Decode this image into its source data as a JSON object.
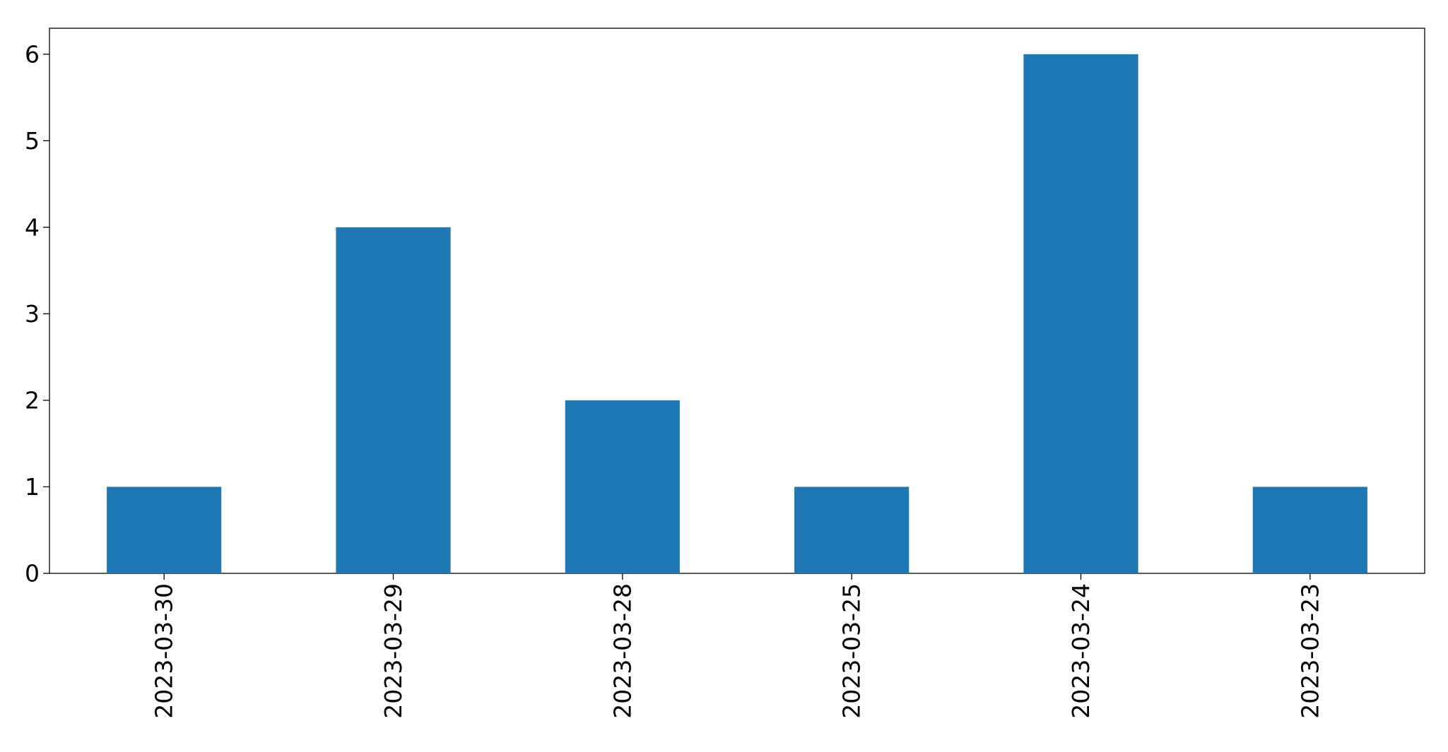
{
  "chart_data": {
    "type": "bar",
    "title": "",
    "xlabel": "",
    "ylabel": "",
    "categories": [
      "2023-03-30",
      "2023-03-29",
      "2023-03-28",
      "2023-03-25",
      "2023-03-24",
      "2023-03-23"
    ],
    "values": [
      1,
      4,
      2,
      1,
      6,
      1
    ],
    "ylim": [
      0,
      6.3
    ],
    "yticks": [
      0,
      1,
      2,
      3,
      4,
      5,
      6
    ],
    "bar_color": "#1f77b4",
    "grid": false,
    "legend": "none"
  }
}
